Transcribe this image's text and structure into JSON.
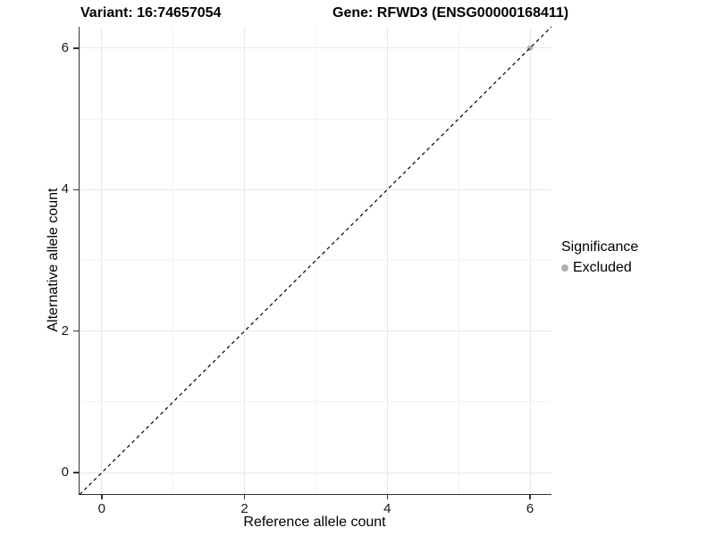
{
  "titles": {
    "variant": "Variant: 16:74657054",
    "gene": "Gene: RFWD3 (ENSG00000168411)"
  },
  "chart_data": {
    "type": "scatter",
    "title": "Variant: 16:74657054   Gene: RFWD3 (ENSG00000168411)",
    "xlabel": "Reference allele count",
    "ylabel": "Alternative allele count",
    "xlim": [
      -0.31,
      6.3
    ],
    "ylim": [
      -0.3,
      6.3
    ],
    "x_ticks": [
      0,
      2,
      4,
      6
    ],
    "y_ticks": [
      0,
      2,
      4,
      6
    ],
    "x_minor_ticks": [
      1,
      3,
      5
    ],
    "y_minor_ticks": [
      1,
      3,
      5
    ],
    "grid": "major and minor, light gray, on white panel",
    "axis_line_color": "#333333",
    "series": [
      {
        "name": "Excluded",
        "color": "#b0b0b0",
        "points": [
          [
            6,
            6
          ]
        ]
      }
    ],
    "reference_line": {
      "description": "identity line y = x",
      "style": "dashed",
      "color": "#000000"
    },
    "legend": {
      "position": "right",
      "title": "Significance",
      "entries": [
        {
          "label": "Excluded",
          "color": "#b0b0b0"
        }
      ]
    }
  }
}
